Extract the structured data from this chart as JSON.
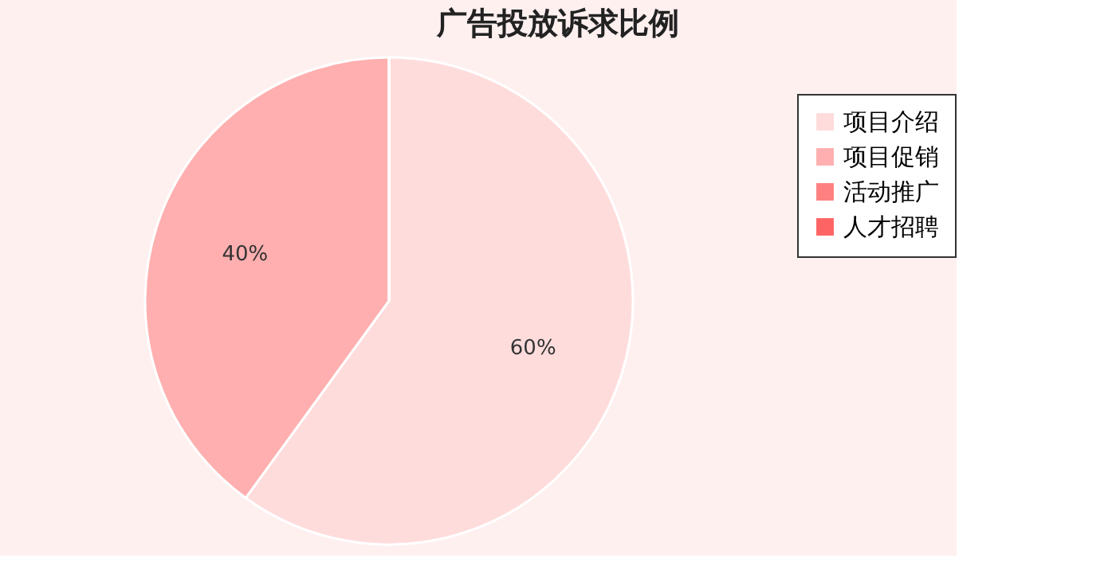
{
  "chart_data": {
    "type": "pie",
    "title": "广告投放诉求比例",
    "categories": [
      "项目介绍",
      "项目促销",
      "活动推广",
      "人才招聘"
    ],
    "values": [
      60,
      40,
      0,
      0
    ],
    "colors": [
      "#ffdcdc",
      "#ffafaf",
      "#ff8080",
      "#ff6464"
    ],
    "value_labels": [
      "60%",
      "40%",
      null,
      null
    ],
    "legend": "top right"
  }
}
